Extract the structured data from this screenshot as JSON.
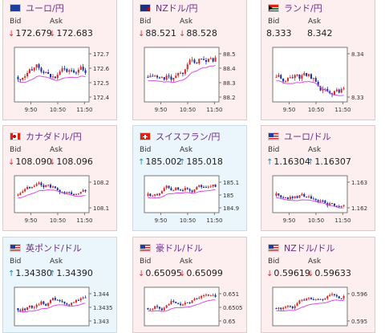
{
  "labels": {
    "bid": "Bid",
    "ask": "Ask"
  },
  "colors": {
    "panel_down_bg": "#fdeef0",
    "panel_up_bg": "#eaf5fc",
    "candle_up": "#d42a2a",
    "candle_down": "#1a2f9c",
    "ma_line": "#d84de0",
    "arrow_down": "#dd3333",
    "arrow_up": "#1a88b5",
    "title_color": "#6a2f86"
  },
  "panels": [
    {
      "pair": "ユーロ/円",
      "flag": "eu-flag",
      "trend": "down",
      "bid": "172.679",
      "ask": "172.683",
      "bid_dir": "down",
      "ask_dir": "down",
      "y_ticks": [
        "172.7",
        "172.6",
        "172.5",
        "172.4"
      ],
      "x_ticks": [
        "9:50",
        "10:50",
        "11:50"
      ]
    },
    {
      "pair": "NZドル/円",
      "flag": "nz-flag",
      "trend": "down",
      "bid": "88.521",
      "ask": "88.528",
      "bid_dir": "down",
      "ask_dir": "down",
      "y_ticks": [
        "88.5",
        "88.4",
        "88.3",
        "88.2"
      ],
      "x_ticks": [
        "9:50",
        "10:50",
        "11:50"
      ]
    },
    {
      "pair": "ランド/円",
      "flag": "za-flag",
      "trend": "down",
      "bid": "8.333",
      "ask": "8.342",
      "bid_dir": "none",
      "ask_dir": "none",
      "y_ticks": [
        "8.34",
        "8.33"
      ],
      "x_ticks": [
        "9:50",
        "10:50",
        "11:50"
      ]
    },
    {
      "pair": "カナダドル/円",
      "flag": "ca-flag",
      "trend": "down",
      "bid": "108.090",
      "ask": "108.096",
      "bid_dir": "down",
      "ask_dir": "down",
      "y_ticks": [
        "108.2",
        "108.1"
      ],
      "x_ticks": [
        "9:50",
        "10:50",
        "11:50"
      ]
    },
    {
      "pair": "スイスフラン/円",
      "flag": "ch-flag",
      "trend": "up",
      "bid": "185.002",
      "ask": "185.018",
      "bid_dir": "up",
      "ask_dir": "up",
      "y_ticks": [
        "185.1",
        "185",
        "184.9"
      ],
      "x_ticks": [
        "9:50",
        "10:50",
        "11:50"
      ]
    },
    {
      "pair": "ユーロ/ドル",
      "flag": "us-flag",
      "trend": "down",
      "bid": "1.16304",
      "ask": "1.16307",
      "bid_dir": "up",
      "ask_dir": "up",
      "y_ticks": [
        "1.163",
        "1.162"
      ],
      "x_ticks": [
        "9:50",
        "10:50",
        "11:50"
      ]
    },
    {
      "pair": "英ポンド/ドル",
      "flag": "us-flag",
      "trend": "up",
      "bid": "1.34380",
      "ask": "1.34390",
      "bid_dir": "up",
      "ask_dir": "up",
      "y_ticks": [
        "1.344",
        "1.3435",
        "1.343"
      ],
      "x_ticks": []
    },
    {
      "pair": "豪ドル/ドル",
      "flag": "us-flag",
      "trend": "down",
      "bid": "0.65095",
      "ask": "0.65099",
      "bid_dir": "down",
      "ask_dir": "down",
      "y_ticks": [
        "0.651",
        "0.6505",
        "0.65"
      ],
      "x_ticks": []
    },
    {
      "pair": "NZドル/ドル",
      "flag": "us-flag",
      "trend": "down",
      "bid": "0.59619",
      "ask": "0.59633",
      "bid_dir": "down",
      "ask_dir": "down",
      "y_ticks": [
        "0.596",
        "0.595"
      ],
      "x_ticks": []
    }
  ]
}
